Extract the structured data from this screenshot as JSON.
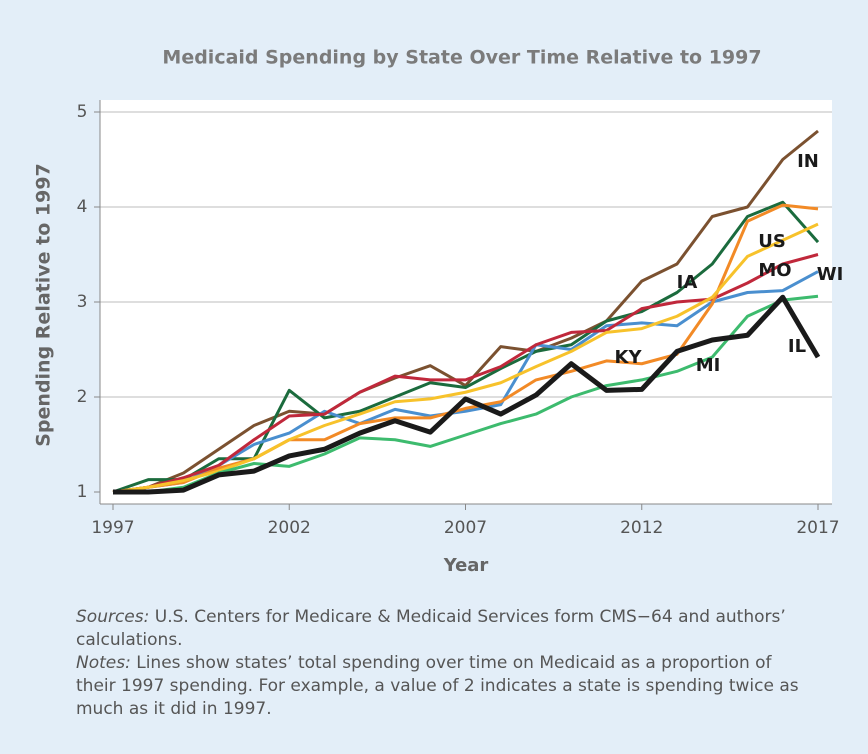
{
  "chart_data": {
    "type": "line",
    "title": "Medicaid Spending by State Over Time Relative to 1997",
    "x_label": "Year",
    "y_label": "Spending Relative to 1997",
    "x": [
      1997,
      1998,
      1999,
      2000,
      2001,
      2002,
      2003,
      2004,
      2005,
      2006,
      2007,
      2008,
      2009,
      2010,
      2011,
      2012,
      2013,
      2014,
      2015,
      2016,
      2017
    ],
    "xlim": [
      1997,
      2017
    ],
    "xticks": [
      1997,
      2002,
      2007,
      2012,
      2017
    ],
    "ylim": [
      1,
      5
    ],
    "yticks": [
      1,
      2,
      3,
      4,
      5
    ],
    "grid": true,
    "series": [
      {
        "name": "IN",
        "color": "#7b5130",
        "values": [
          1.0,
          1.05,
          1.2,
          1.45,
          1.7,
          1.85,
          1.82,
          2.05,
          2.2,
          2.33,
          2.12,
          2.53,
          2.48,
          2.62,
          2.8,
          3.22,
          3.4,
          3.9,
          4.0,
          4.5,
          4.8
        ]
      },
      {
        "name": "IA",
        "color": "#1b6b3d",
        "values": [
          1.0,
          1.13,
          1.13,
          1.35,
          1.35,
          2.07,
          1.78,
          1.85,
          2.0,
          2.15,
          2.1,
          2.3,
          2.48,
          2.55,
          2.8,
          2.9,
          3.1,
          3.4,
          3.9,
          4.05,
          3.63
        ]
      },
      {
        "name": "WI",
        "color": "#4a8fcf",
        "values": [
          1.0,
          1.05,
          1.1,
          1.28,
          1.5,
          1.62,
          1.85,
          1.72,
          1.87,
          1.8,
          1.85,
          1.92,
          2.55,
          2.5,
          2.75,
          2.78,
          2.75,
          3.0,
          3.1,
          3.12,
          3.32
        ]
      },
      {
        "name": "MO",
        "color": "#c0283b",
        "values": [
          1.0,
          1.05,
          1.15,
          1.28,
          1.55,
          1.8,
          1.82,
          2.05,
          2.22,
          2.18,
          2.18,
          2.32,
          2.55,
          2.68,
          2.7,
          2.93,
          3.0,
          3.03,
          3.2,
          3.4,
          3.5
        ]
      },
      {
        "name": "KY",
        "color": "#f28a26",
        "values": [
          1.0,
          1.05,
          1.1,
          1.25,
          1.35,
          1.55,
          1.55,
          1.72,
          1.78,
          1.78,
          1.88,
          1.95,
          2.18,
          2.27,
          2.38,
          2.35,
          2.45,
          2.98,
          3.85,
          4.02,
          3.98
        ]
      },
      {
        "name": "US",
        "color": "#f7c22b",
        "values": [
          1.0,
          1.05,
          1.12,
          1.22,
          1.35,
          1.55,
          1.7,
          1.82,
          1.95,
          1.98,
          2.05,
          2.15,
          2.32,
          2.48,
          2.68,
          2.72,
          2.85,
          3.05,
          3.48,
          3.65,
          3.82
        ]
      },
      {
        "name": "MI",
        "color": "#3dbb6e",
        "values": [
          1.0,
          1.0,
          1.05,
          1.2,
          1.3,
          1.27,
          1.4,
          1.57,
          1.55,
          1.48,
          1.6,
          1.72,
          1.82,
          2.0,
          2.12,
          2.18,
          2.27,
          2.42,
          2.85,
          3.02,
          3.06
        ]
      },
      {
        "name": "IL",
        "color": "#1a1a1a",
        "values": [
          1.0,
          1.0,
          1.02,
          1.18,
          1.22,
          1.38,
          1.45,
          1.62,
          1.75,
          1.63,
          1.98,
          1.82,
          2.02,
          2.35,
          2.07,
          2.08,
          2.48,
          2.6,
          2.65,
          3.05,
          2.42
        ]
      }
    ]
  },
  "footnotes": {
    "sources_label": "Sources:",
    "sources_text": "U.S. Centers for Medicare & Medicaid Services form CMS−64 and authors’ calculations.",
    "notes_label": "Notes:",
    "notes_text": "Lines show states’ total spending over time on Medicaid as a proportion of their 1997 spending. For example, a value of 2 indicates a state is spending twice as much as it did in 1997."
  }
}
